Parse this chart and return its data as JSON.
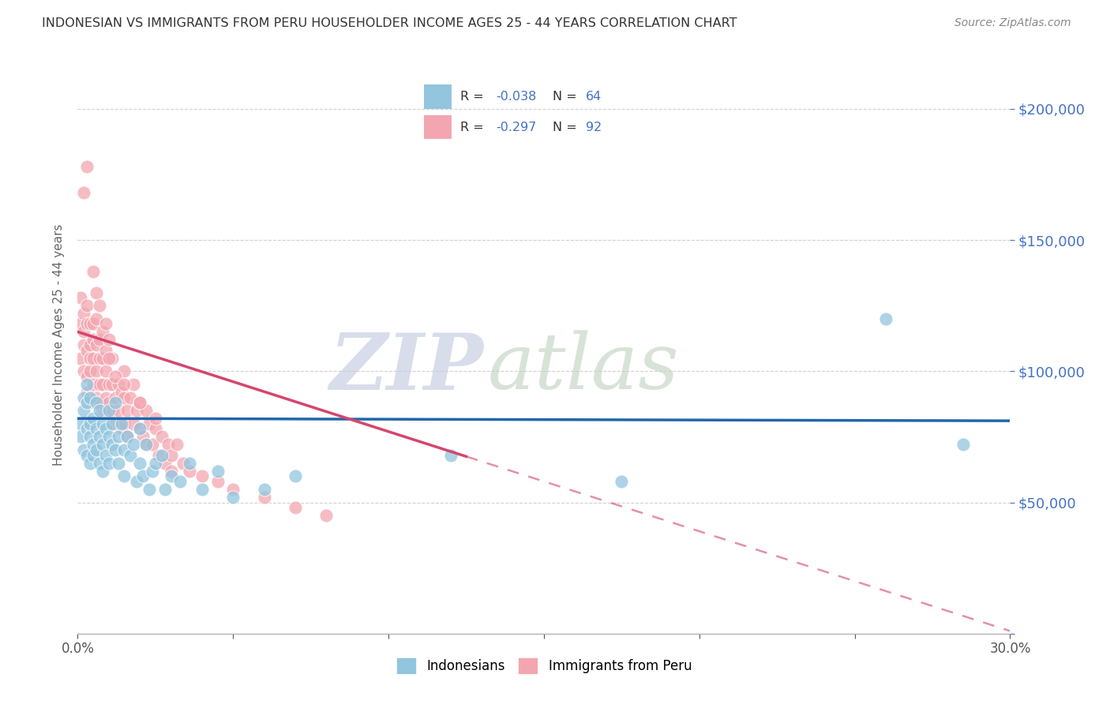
{
  "title": "INDONESIAN VS IMMIGRANTS FROM PERU HOUSEHOLDER INCOME AGES 25 - 44 YEARS CORRELATION CHART",
  "source": "Source: ZipAtlas.com",
  "ylabel": "Householder Income Ages 25 - 44 years",
  "xmin": 0.0,
  "xmax": 0.3,
  "ymin": 0,
  "ymax": 220000,
  "yticks": [
    0,
    50000,
    100000,
    150000,
    200000
  ],
  "ytick_labels": [
    "",
    "$50,000",
    "$100,000",
    "$150,000",
    "$200,000"
  ],
  "xticks": [
    0.0,
    0.05,
    0.1,
    0.15,
    0.2,
    0.25,
    0.3
  ],
  "xtick_labels": [
    "0.0%",
    "",
    "",
    "",
    "",
    "",
    "30.0%"
  ],
  "legend_r_blue": "R = -0.038",
  "legend_n_blue": "N = 64",
  "legend_r_pink": "R = -0.297",
  "legend_n_pink": "N = 92",
  "legend_label_blue": "Indonesians",
  "legend_label_pink": "Immigrants from Peru",
  "blue_color": "#92c5de",
  "pink_color": "#f4a6b0",
  "blue_line_color": "#2166ac",
  "pink_line_color": "#d6456e",
  "watermark_zip": "ZIP",
  "watermark_atlas": "atlas",
  "indonesian_x": [
    0.001,
    0.001,
    0.002,
    0.002,
    0.002,
    0.003,
    0.003,
    0.003,
    0.003,
    0.004,
    0.004,
    0.004,
    0.004,
    0.005,
    0.005,
    0.005,
    0.006,
    0.006,
    0.006,
    0.007,
    0.007,
    0.007,
    0.008,
    0.008,
    0.008,
    0.009,
    0.009,
    0.01,
    0.01,
    0.01,
    0.011,
    0.011,
    0.012,
    0.012,
    0.013,
    0.013,
    0.014,
    0.015,
    0.015,
    0.016,
    0.017,
    0.018,
    0.019,
    0.02,
    0.02,
    0.021,
    0.022,
    0.023,
    0.024,
    0.025,
    0.027,
    0.028,
    0.03,
    0.033,
    0.036,
    0.04,
    0.045,
    0.05,
    0.06,
    0.07,
    0.12,
    0.175,
    0.26,
    0.285
  ],
  "indonesian_y": [
    80000,
    75000,
    90000,
    70000,
    85000,
    78000,
    68000,
    88000,
    95000,
    75000,
    65000,
    80000,
    90000,
    72000,
    82000,
    68000,
    78000,
    88000,
    70000,
    75000,
    65000,
    85000,
    72000,
    80000,
    62000,
    78000,
    68000,
    75000,
    85000,
    65000,
    72000,
    80000,
    70000,
    88000,
    75000,
    65000,
    80000,
    70000,
    60000,
    75000,
    68000,
    72000,
    58000,
    65000,
    78000,
    60000,
    72000,
    55000,
    62000,
    65000,
    68000,
    55000,
    60000,
    58000,
    65000,
    55000,
    62000,
    52000,
    55000,
    60000,
    68000,
    58000,
    120000,
    72000
  ],
  "peru_x": [
    0.001,
    0.001,
    0.001,
    0.002,
    0.002,
    0.002,
    0.002,
    0.003,
    0.003,
    0.003,
    0.003,
    0.003,
    0.004,
    0.004,
    0.004,
    0.004,
    0.004,
    0.005,
    0.005,
    0.005,
    0.005,
    0.005,
    0.006,
    0.006,
    0.006,
    0.006,
    0.007,
    0.007,
    0.007,
    0.007,
    0.008,
    0.008,
    0.008,
    0.008,
    0.009,
    0.009,
    0.009,
    0.01,
    0.01,
    0.01,
    0.011,
    0.011,
    0.011,
    0.012,
    0.012,
    0.013,
    0.013,
    0.014,
    0.014,
    0.015,
    0.015,
    0.015,
    0.016,
    0.016,
    0.017,
    0.018,
    0.018,
    0.019,
    0.02,
    0.02,
    0.021,
    0.022,
    0.022,
    0.023,
    0.024,
    0.025,
    0.026,
    0.027,
    0.028,
    0.029,
    0.03,
    0.032,
    0.034,
    0.036,
    0.04,
    0.045,
    0.05,
    0.06,
    0.07,
    0.08,
    0.002,
    0.003,
    0.005,
    0.006,
    0.007,
    0.009,
    0.01,
    0.012,
    0.015,
    0.02,
    0.025,
    0.03
  ],
  "peru_y": [
    105000,
    118000,
    128000,
    110000,
    100000,
    122000,
    115000,
    108000,
    98000,
    118000,
    125000,
    92000,
    110000,
    100000,
    118000,
    88000,
    105000,
    112000,
    95000,
    105000,
    88000,
    118000,
    100000,
    110000,
    90000,
    120000,
    105000,
    95000,
    112000,
    88000,
    105000,
    95000,
    115000,
    85000,
    100000,
    90000,
    108000,
    95000,
    88000,
    112000,
    95000,
    85000,
    105000,
    90000,
    80000,
    95000,
    85000,
    92000,
    78000,
    90000,
    80000,
    100000,
    85000,
    75000,
    90000,
    80000,
    95000,
    85000,
    78000,
    88000,
    75000,
    85000,
    72000,
    80000,
    72000,
    78000,
    68000,
    75000,
    65000,
    72000,
    68000,
    72000,
    65000,
    62000,
    60000,
    58000,
    55000,
    52000,
    48000,
    45000,
    168000,
    178000,
    138000,
    130000,
    125000,
    118000,
    105000,
    98000,
    95000,
    88000,
    82000,
    62000
  ]
}
